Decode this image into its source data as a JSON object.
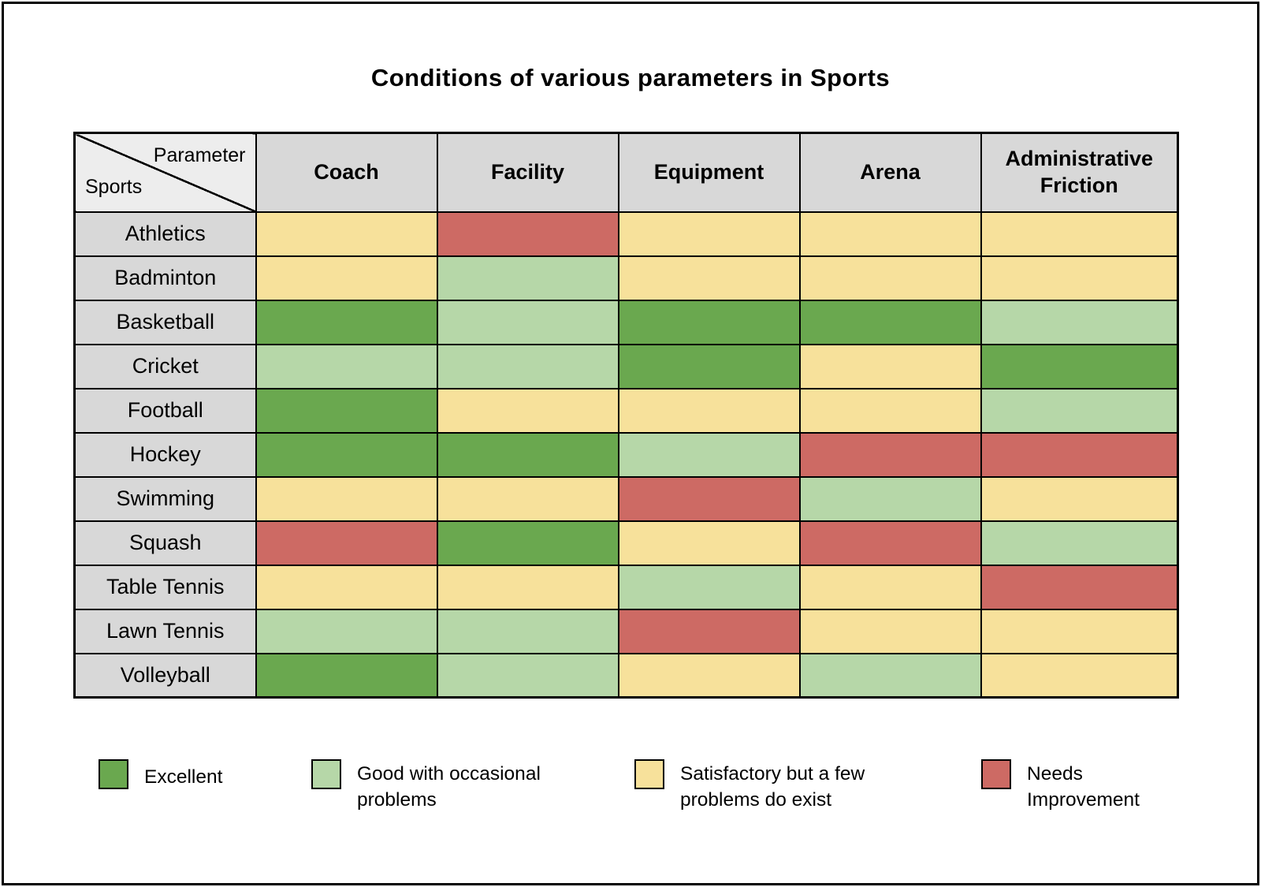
{
  "title": "Conditions of various parameters in Sports",
  "corner": {
    "top_label": "Parameter",
    "bottom_label": "Sports"
  },
  "columns": [
    "Coach",
    "Facility",
    "Equipment",
    "Arena",
    "Administrative Friction"
  ],
  "rows": [
    {
      "sport": "Athletics",
      "ratings": [
        "satisfactory",
        "needs_improvement",
        "satisfactory",
        "satisfactory",
        "satisfactory"
      ]
    },
    {
      "sport": "Badminton",
      "ratings": [
        "satisfactory",
        "good",
        "satisfactory",
        "satisfactory",
        "satisfactory"
      ]
    },
    {
      "sport": "Basketball",
      "ratings": [
        "excellent",
        "good",
        "excellent",
        "excellent",
        "good"
      ]
    },
    {
      "sport": "Cricket",
      "ratings": [
        "good",
        "good",
        "excellent",
        "satisfactory",
        "excellent"
      ]
    },
    {
      "sport": "Football",
      "ratings": [
        "excellent",
        "satisfactory",
        "satisfactory",
        "satisfactory",
        "good"
      ]
    },
    {
      "sport": "Hockey",
      "ratings": [
        "excellent",
        "excellent",
        "good",
        "needs_improvement",
        "needs_improvement"
      ]
    },
    {
      "sport": "Swimming",
      "ratings": [
        "satisfactory",
        "satisfactory",
        "needs_improvement",
        "good",
        "satisfactory"
      ]
    },
    {
      "sport": "Squash",
      "ratings": [
        "needs_improvement",
        "excellent",
        "satisfactory",
        "needs_improvement",
        "good"
      ]
    },
    {
      "sport": "Table Tennis",
      "ratings": [
        "satisfactory",
        "satisfactory",
        "good",
        "satisfactory",
        "needs_improvement"
      ]
    },
    {
      "sport": "Lawn Tennis",
      "ratings": [
        "good",
        "good",
        "needs_improvement",
        "satisfactory",
        "satisfactory"
      ]
    },
    {
      "sport": "Volleyball",
      "ratings": [
        "excellent",
        "good",
        "satisfactory",
        "good",
        "satisfactory"
      ]
    }
  ],
  "rating_colors": {
    "excellent": "#6aa84f",
    "good": "#b6d7a8",
    "satisfactory": "#f7e19b",
    "needs_improvement": "#cd6a64"
  },
  "legend": [
    {
      "rating": "excellent",
      "label": "Excellent"
    },
    {
      "rating": "good",
      "label": "Good with occasional problems"
    },
    {
      "rating": "satisfactory",
      "label": "Satisfactory but a few problems do exist"
    },
    {
      "rating": "needs_improvement",
      "label": "Needs Improvement"
    }
  ],
  "chart_data": {
    "type": "heatmap",
    "title": "Conditions of various parameters in Sports",
    "x_categories": [
      "Coach",
      "Facility",
      "Equipment",
      "Arena",
      "Administrative Friction"
    ],
    "y_categories": [
      "Athletics",
      "Badminton",
      "Basketball",
      "Cricket",
      "Football",
      "Hockey",
      "Swimming",
      "Squash",
      "Table Tennis",
      "Lawn Tennis",
      "Volleyball"
    ],
    "values": [
      [
        "satisfactory",
        "needs_improvement",
        "satisfactory",
        "satisfactory",
        "satisfactory"
      ],
      [
        "satisfactory",
        "good",
        "satisfactory",
        "satisfactory",
        "satisfactory"
      ],
      [
        "excellent",
        "good",
        "excellent",
        "excellent",
        "good"
      ],
      [
        "good",
        "good",
        "excellent",
        "satisfactory",
        "excellent"
      ],
      [
        "excellent",
        "satisfactory",
        "satisfactory",
        "satisfactory",
        "good"
      ],
      [
        "excellent",
        "excellent",
        "good",
        "needs_improvement",
        "needs_improvement"
      ],
      [
        "satisfactory",
        "satisfactory",
        "needs_improvement",
        "good",
        "satisfactory"
      ],
      [
        "needs_improvement",
        "excellent",
        "satisfactory",
        "needs_improvement",
        "good"
      ],
      [
        "satisfactory",
        "satisfactory",
        "good",
        "satisfactory",
        "needs_improvement"
      ],
      [
        "good",
        "good",
        "needs_improvement",
        "satisfactory",
        "satisfactory"
      ],
      [
        "excellent",
        "good",
        "satisfactory",
        "good",
        "satisfactory"
      ]
    ],
    "value_scale": {
      "excellent": "Excellent",
      "good": "Good with occasional problems",
      "satisfactory": "Satisfactory but a few problems do exist",
      "needs_improvement": "Needs Improvement"
    },
    "colors": {
      "excellent": "#6aa84f",
      "good": "#b6d7a8",
      "satisfactory": "#f7e19b",
      "needs_improvement": "#cd6a64"
    },
    "legend_position": "bottom",
    "grid": true
  }
}
